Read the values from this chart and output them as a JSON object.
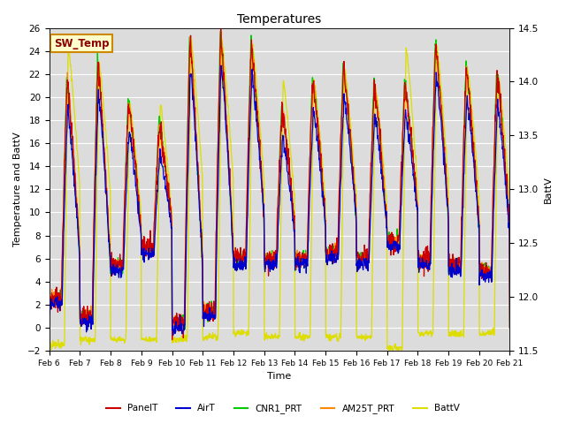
{
  "title": "Temperatures",
  "xlabel": "Time",
  "ylabel_left": "Temperature and BattV",
  "ylabel_right": "BattV",
  "ylim_left": [
    -2,
    26
  ],
  "ylim_right": [
    11.5,
    14.5
  ],
  "bg_color": "#dcdcdc",
  "fig_bg": "#ffffff",
  "xtick_labels": [
    "Feb 6",
    "Feb 7",
    "Feb 8",
    "Feb 9",
    "Feb 10",
    "Feb 11",
    "Feb 12",
    "Feb 13",
    "Feb 14",
    "Feb 15",
    "Feb 16",
    "Feb 17",
    "Feb 18",
    "Feb 19",
    "Feb 20",
    "Feb 21"
  ],
  "legend_entries": [
    "PanelT",
    "AirT",
    "CNR1_PRT",
    "AM25T_PRT",
    "BattV"
  ],
  "legend_colors": [
    "#cc0000",
    "#0000cc",
    "#00cc00",
    "#ff8800",
    "#dddd00"
  ],
  "sw_temp_label": "SW_Temp",
  "sw_temp_color": "#8b0000",
  "sw_temp_bg": "#ffffcc",
  "sw_temp_edge": "#cc8800",
  "day_peaks": [
    21.5,
    23.0,
    19.5,
    17.5,
    25.0,
    25.5,
    24.5,
    19.0,
    21.5,
    22.5,
    21.0,
    21.0,
    24.5,
    22.5,
    22.0
  ],
  "night_mins": [
    2.5,
    1.0,
    5.5,
    7.0,
    0.5,
    1.5,
    6.0,
    6.0,
    6.0,
    6.5,
    6.0,
    7.5,
    6.0,
    5.5,
    5.0
  ],
  "batt_day_peaks": [
    24.5,
    23.0,
    19.5,
    19.5,
    25.0,
    25.0,
    24.5,
    21.5,
    21.5,
    22.5,
    21.0,
    24.5,
    24.5,
    22.5,
    22.0
  ],
  "batt_night_mins": [
    -1.5,
    -1.0,
    -1.0,
    -1.0,
    -1.0,
    -0.8,
    -0.5,
    -0.8,
    -0.8,
    -0.8,
    -0.8,
    -1.8,
    -0.5,
    -0.5,
    -0.5
  ]
}
